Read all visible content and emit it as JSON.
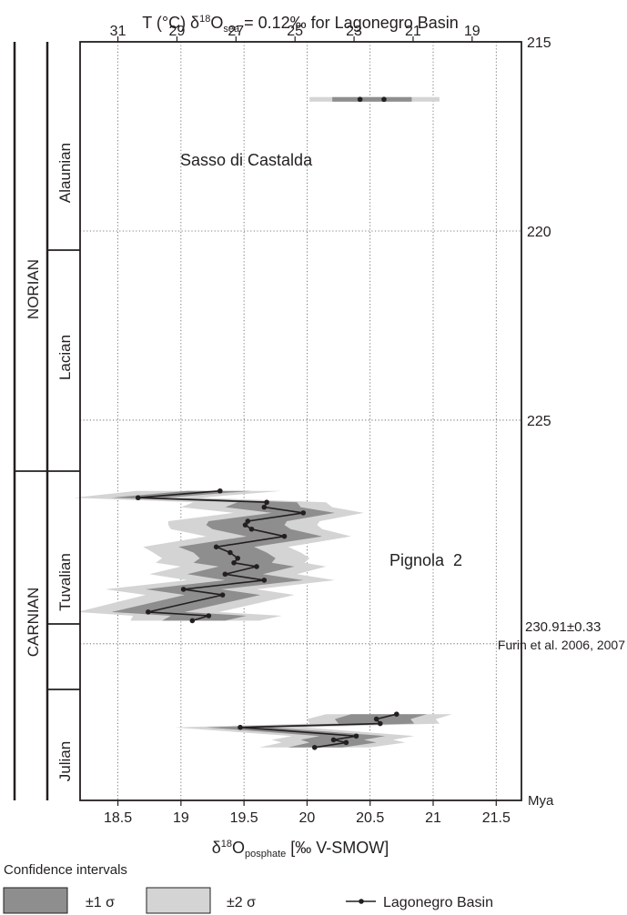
{
  "chart_data": {
    "type": "line",
    "top_axis": {
      "title_pre": "T (°C) δ",
      "title_sup": "18",
      "title_mid": "O",
      "title_sub": "sea",
      "title_post": " = 0.12‰ for Lagonegro Basin",
      "ticks": [
        31,
        29,
        27,
        25,
        23,
        21,
        19
      ]
    },
    "xaxis": {
      "label_pre": "δ",
      "label_sup": "18",
      "label_mid": "O",
      "label_sub": "posphate",
      "label_post": " [‰ V-SMOW]",
      "ticks": [
        18.5,
        19,
        19.5,
        20,
        20.5,
        21,
        21.5
      ],
      "xlim": [
        18.2,
        21.7
      ]
    },
    "yaxis": {
      "ticks": [
        215,
        220,
        225
      ],
      "ylim": [
        215,
        235.05
      ],
      "boundary_label": "230.91±0.33",
      "boundary_value": 230.91,
      "boundary_source": "Furin et al. 2006, 2007",
      "unit_label": "Mya",
      "grid": "dotted"
    },
    "stratigraphy": {
      "stages": [
        {
          "name": "NORIAN",
          "from": 215,
          "to": 226.05
        },
        {
          "name": "CARNIAN",
          "from": 226.05,
          "to": 235.05
        }
      ],
      "substages": [
        {
          "name": "Alaunian",
          "from": 215,
          "to": 220.05
        },
        {
          "name": "Lacian",
          "from": 220.05,
          "to": 226.05
        },
        {
          "name": "Tuvalian",
          "from": 226.05,
          "to": 230.95
        },
        {
          "name": "Julian",
          "from": 232.1,
          "to": 235.05
        }
      ]
    },
    "annotations": [
      "Sasso di Castalda",
      "Pignola  2"
    ],
    "series": [
      {
        "name": "Lagonegro Basin",
        "segments": [
          {
            "site": "Sasso di Castalda",
            "points": [
              [
                20.42,
                216.52
              ],
              [
                20.61,
                216.52
              ]
            ],
            "band1": {
              "left": [
                20.2,
                20.2
              ],
              "right": [
                20.83,
                20.83
              ]
            },
            "band2": {
              "left": [
                20.02,
                20.02
              ],
              "right": [
                21.05,
                21.05
              ]
            }
          },
          {
            "site": "Pignola 2",
            "points": [
              [
                19.31,
                226.87
              ],
              [
                18.66,
                227.05
              ],
              [
                19.68,
                227.17
              ],
              [
                19.66,
                227.3
              ],
              [
                19.97,
                227.45
              ],
              [
                19.53,
                227.67
              ],
              [
                19.51,
                227.77
              ],
              [
                19.56,
                227.88
              ],
              [
                19.82,
                228.07
              ],
              [
                19.28,
                228.35
              ],
              [
                19.39,
                228.5
              ],
              [
                19.45,
                228.65
              ],
              [
                19.42,
                228.77
              ],
              [
                19.6,
                228.87
              ],
              [
                19.35,
                229.07
              ],
              [
                19.66,
                229.23
              ],
              [
                19.02,
                229.47
              ],
              [
                19.33,
                229.62
              ],
              [
                18.74,
                230.07
              ],
              [
                19.22,
                230.17
              ],
              [
                19.09,
                230.3
              ]
            ],
            "band1": {
              "left": [
                19.05,
                18.45,
                19.45,
                19.35,
                19.72,
                19.22,
                19.2,
                19.25,
                19.52,
                18.98,
                19.1,
                19.15,
                19.1,
                19.3,
                19.05,
                19.35,
                18.72,
                19.03,
                18.45,
                18.92,
                18.85
              ],
              "right": [
                19.56,
                18.88,
                19.92,
                19.95,
                20.22,
                19.84,
                19.82,
                19.87,
                20.12,
                19.58,
                19.68,
                19.75,
                19.72,
                19.9,
                19.65,
                19.97,
                19.32,
                19.63,
                19.03,
                19.52,
                19.35
              ]
            },
            "band2": {
              "left": [
                18.65,
                18.15,
                19.1,
                19.0,
                19.42,
                18.9,
                18.9,
                18.92,
                19.2,
                18.7,
                18.78,
                18.85,
                18.8,
                19.0,
                18.75,
                19.05,
                18.4,
                18.72,
                18.18,
                18.62,
                18.6
              ],
              "right": [
                19.8,
                19.15,
                20.15,
                20.2,
                20.45,
                20.1,
                20.08,
                20.12,
                20.35,
                19.85,
                19.95,
                20.02,
                19.98,
                20.15,
                19.92,
                20.22,
                19.6,
                19.9,
                19.3,
                19.8,
                19.62
              ]
            }
          },
          {
            "site": "Pignola 2",
            "points": [
              [
                20.71,
                232.77
              ],
              [
                20.55,
                232.9
              ],
              [
                20.58,
                233.02
              ],
              [
                19.47,
                233.12
              ],
              [
                20.39,
                233.35
              ],
              [
                20.21,
                233.45
              ],
              [
                20.31,
                233.52
              ],
              [
                20.06,
                233.65
              ]
            ],
            "band1": {
              "left": [
                20.35,
                20.22,
                20.25,
                19.2,
                20.1,
                19.95,
                20.02,
                19.85
              ],
              "right": [
                20.95,
                20.82,
                20.85,
                19.72,
                20.62,
                20.45,
                20.55,
                20.28
              ]
            },
            "band2": {
              "left": [
                20.15,
                20.0,
                20.02,
                18.95,
                19.88,
                19.72,
                19.8,
                19.62
              ],
              "right": [
                21.15,
                21.02,
                21.05,
                19.98,
                20.85,
                20.68,
                20.78,
                20.5
              ]
            }
          }
        ]
      }
    ],
    "legend": {
      "title": "Confidence intervals",
      "sigma1_label": "±1 σ",
      "sigma2_label": "±2 σ",
      "series_label": "Lagonegro Basin",
      "band1_color": "#8e8e8e",
      "band2_color": "#d4d4d4"
    },
    "colors": {
      "line": "#231f20",
      "band1": "#8e8e8e",
      "band2": "#d4d4d4",
      "grid": "#555555"
    }
  }
}
